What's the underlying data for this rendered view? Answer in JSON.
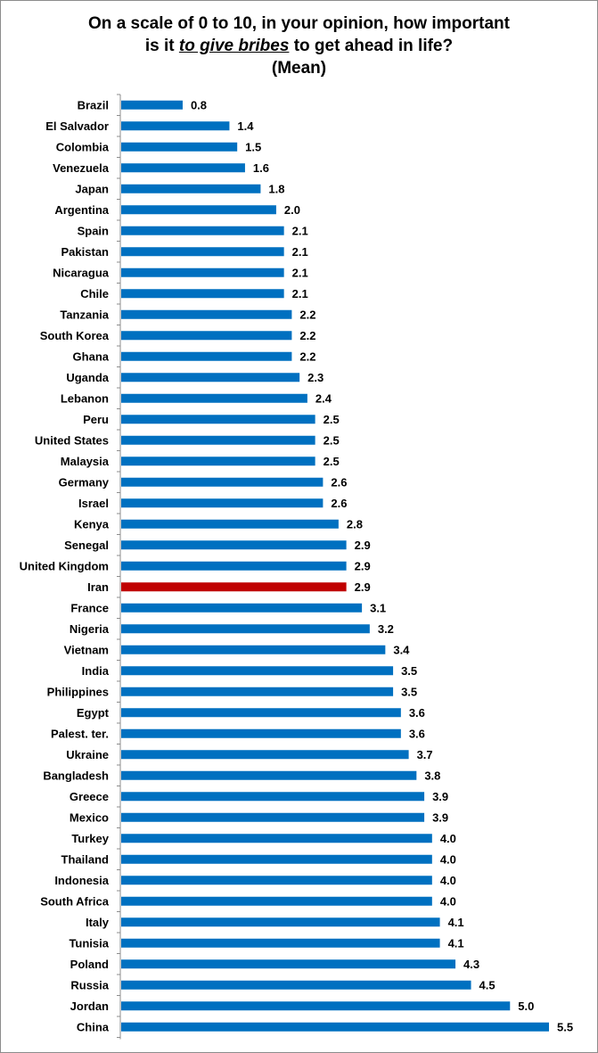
{
  "chart_data": {
    "type": "bar",
    "orientation": "horizontal",
    "title_parts": {
      "line1": "On a scale of 0 to 10, in your opinion, how important",
      "line2_before": "is it ",
      "line2_emph": "to give bribes",
      "line2_after": " to get ahead in life?",
      "line3": "(Mean)"
    },
    "categories": [
      "Brazil",
      "El Salvador",
      "Colombia",
      "Venezuela",
      "Japan",
      "Argentina",
      "Spain",
      "Pakistan",
      "Nicaragua",
      "Chile",
      "Tanzania",
      "South Korea",
      "Ghana",
      "Uganda",
      "Lebanon",
      "Peru",
      "United States",
      "Malaysia",
      "Germany",
      "Israel",
      "Kenya",
      "Senegal",
      "United Kingdom",
      "Iran",
      "France",
      "Nigeria",
      "Vietnam",
      "India",
      "Philippines",
      "Egypt",
      "Palest. ter.",
      "Ukraine",
      "Bangladesh",
      "Greece",
      "Mexico",
      "Turkey",
      "Thailand",
      "Indonesia",
      "South Africa",
      "Italy",
      "Tunisia",
      "Poland",
      "Russia",
      "Jordan",
      "China"
    ],
    "values": [
      0.8,
      1.4,
      1.5,
      1.6,
      1.8,
      2.0,
      2.1,
      2.1,
      2.1,
      2.1,
      2.2,
      2.2,
      2.2,
      2.3,
      2.4,
      2.5,
      2.5,
      2.5,
      2.6,
      2.6,
      2.8,
      2.9,
      2.9,
      2.9,
      3.1,
      3.2,
      3.4,
      3.5,
      3.5,
      3.6,
      3.6,
      3.7,
      3.8,
      3.9,
      3.9,
      4.0,
      4.0,
      4.0,
      4.0,
      4.1,
      4.1,
      4.3,
      4.5,
      5.0,
      5.5
    ],
    "labels": [
      "0.8",
      "1.4",
      "1.5",
      "1.6",
      "1.8",
      "2.0",
      "2.1",
      "2.1",
      "2.1",
      "2.1",
      "2.2",
      "2.2",
      "2.2",
      "2.3",
      "2.4",
      "2.5",
      "2.5",
      "2.5",
      "2.6",
      "2.6",
      "2.8",
      "2.9",
      "2.9",
      "2.9",
      "3.1",
      "3.2",
      "3.4",
      "3.5",
      "3.5",
      "3.6",
      "3.6",
      "3.7",
      "3.8",
      "3.9",
      "3.9",
      "4.0",
      "4.0",
      "4.0",
      "4.0",
      "4.1",
      "4.1",
      "4.3",
      "4.5",
      "5.0",
      "5.5"
    ],
    "highlight": "Iran",
    "colors": {
      "bar": "#0070C0",
      "highlight": "#C00000",
      "axis": "#8c8c8c"
    },
    "xlim": [
      0,
      5.5
    ]
  }
}
